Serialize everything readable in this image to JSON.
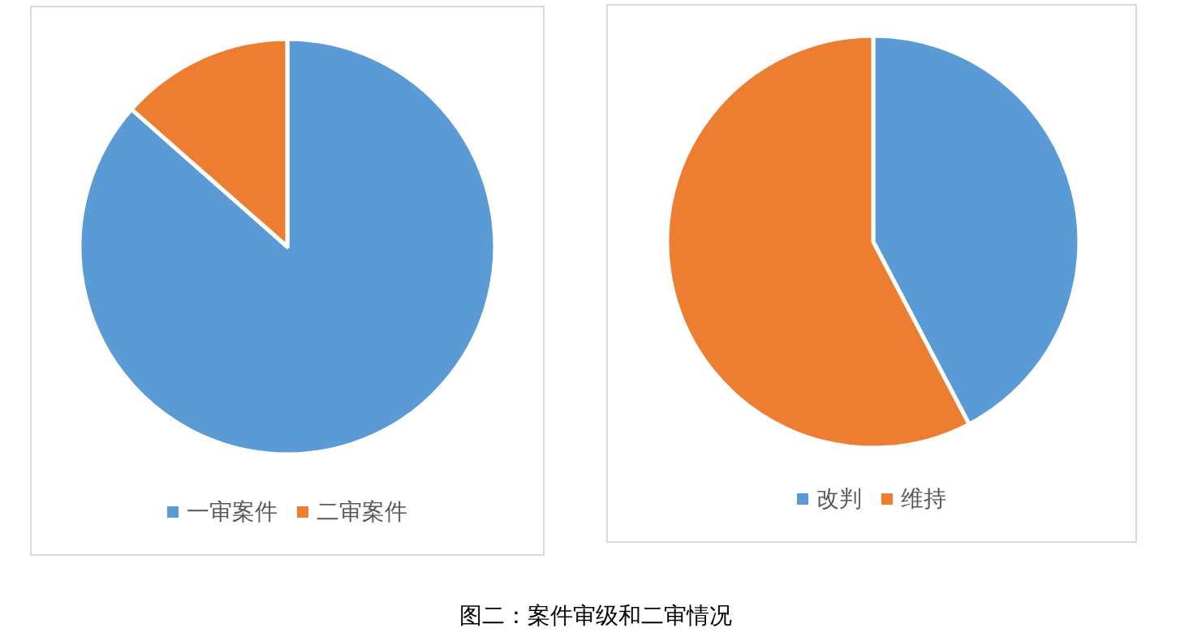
{
  "chart_data": [
    {
      "type": "pie",
      "categories": [
        "一审案件",
        "二审案件"
      ],
      "values": [
        86.5,
        13.5
      ],
      "colors": [
        "#5b9bd5",
        "#ed7d31"
      ],
      "legend": "bottom",
      "annotations": [
        "图二：案件审级和二审情况"
      ]
    },
    {
      "type": "pie",
      "categories": [
        "改判",
        "维持"
      ],
      "values": [
        42.3,
        57.7
      ],
      "colors": [
        "#5b9bd5",
        "#ed7d31"
      ],
      "legend": "bottom"
    }
  ]
}
